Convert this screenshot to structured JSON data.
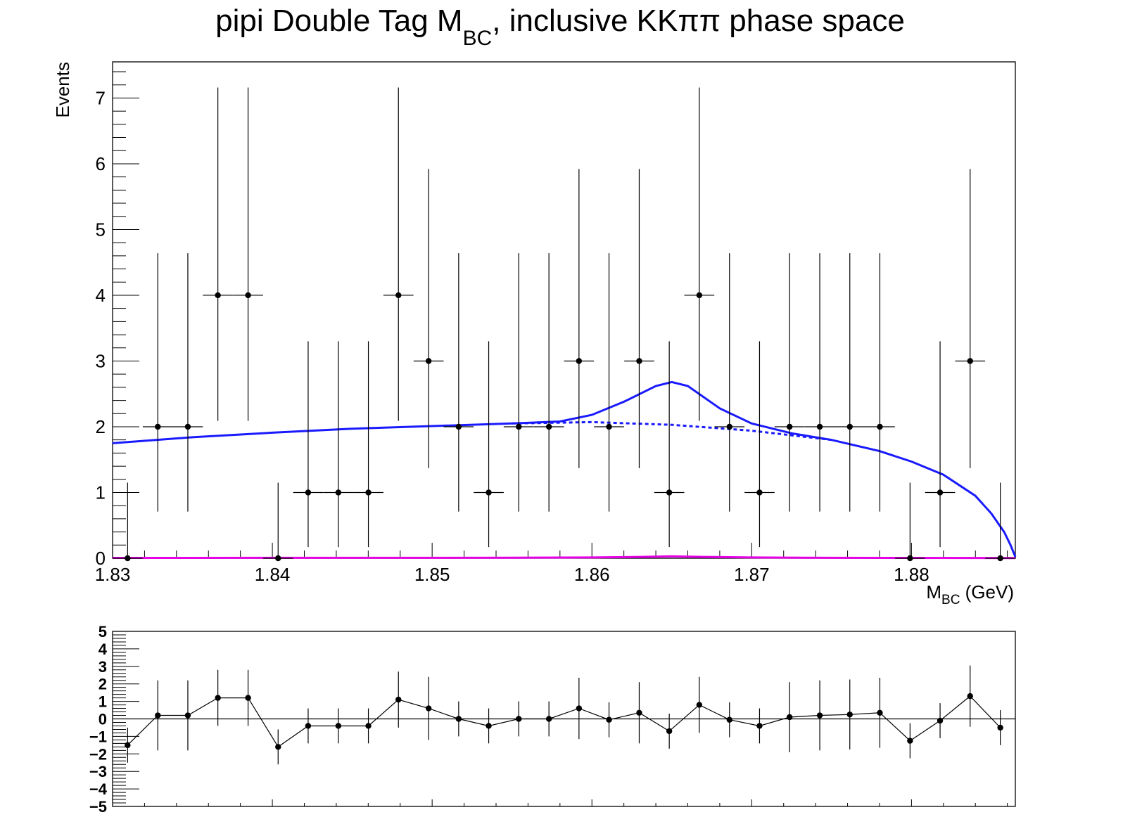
{
  "chart_data": [
    {
      "type": "scatter",
      "title": "pipi Double Tag M",
      "title_sub": "BC",
      "title_rest": ", inclusive KKππ phase space",
      "xlabel_main": "M",
      "xlabel_sub": "BC",
      "xlabel_unit": " (GeV)",
      "ylabel": "Events",
      "xlim": [
        1.83,
        1.8865
      ],
      "ylim": [
        0,
        7.55
      ],
      "x_ticks": [
        1.83,
        1.84,
        1.85,
        1.86,
        1.87,
        1.88
      ],
      "x_tick_labels": [
        "1.83",
        "1.84",
        "1.85",
        "1.86",
        "1.87",
        "1.88"
      ],
      "y_ticks": [
        0,
        1,
        2,
        3,
        4,
        5,
        6,
        7
      ],
      "y_tick_labels": [
        "0",
        "1",
        "2",
        "3",
        "4",
        "5",
        "6",
        "7"
      ],
      "bin_half_width": 0.00094,
      "data_points": {
        "x": [
          1.83094,
          1.83283,
          1.83471,
          1.83659,
          1.83848,
          1.84036,
          1.84224,
          1.84413,
          1.84601,
          1.84789,
          1.84978,
          1.85166,
          1.85354,
          1.85542,
          1.85731,
          1.85919,
          1.86107,
          1.86296,
          1.86484,
          1.86672,
          1.86861,
          1.87049,
          1.87237,
          1.87426,
          1.87614,
          1.87802,
          1.87991,
          1.88179,
          1.88367,
          1.88556
        ],
        "y": [
          0,
          2,
          2,
          4,
          4,
          0,
          1,
          1,
          1,
          4,
          3,
          2,
          1,
          2,
          2,
          3,
          2,
          3,
          1,
          4,
          2,
          1,
          2,
          2,
          2,
          2,
          0,
          1,
          3,
          0
        ],
        "err_low": [
          0,
          1.29,
          1.29,
          1.91,
          1.91,
          0,
          0.83,
          0.83,
          0.83,
          1.91,
          1.63,
          1.29,
          0.83,
          1.29,
          1.29,
          1.63,
          1.29,
          1.63,
          0.83,
          1.91,
          1.29,
          0.83,
          1.29,
          1.29,
          1.29,
          1.29,
          0,
          0.83,
          1.63,
          0
        ],
        "err_high": [
          1.15,
          2.64,
          2.64,
          3.16,
          3.16,
          1.15,
          2.3,
          2.3,
          2.3,
          3.16,
          2.92,
          2.64,
          2.3,
          2.64,
          2.64,
          2.92,
          2.64,
          2.92,
          2.3,
          3.16,
          2.64,
          2.3,
          2.64,
          2.64,
          2.64,
          2.64,
          1.15,
          2.3,
          2.92,
          1.15
        ]
      },
      "curves": [
        {
          "style": "solid",
          "color": "#1a1aff",
          "x": [
            1.83,
            1.835,
            1.84,
            1.845,
            1.85,
            1.855,
            1.858,
            1.86,
            1.862,
            1.864,
            1.865,
            1.866,
            1.868,
            1.87,
            1.8725,
            1.875,
            1.878,
            1.88,
            1.882,
            1.884,
            1.885,
            1.8858,
            1.8862,
            1.8865
          ],
          "y": [
            1.75,
            1.84,
            1.91,
            1.97,
            2.01,
            2.05,
            2.08,
            2.18,
            2.38,
            2.62,
            2.68,
            2.62,
            2.28,
            2.05,
            1.9,
            1.8,
            1.63,
            1.47,
            1.27,
            0.95,
            0.68,
            0.4,
            0.2,
            0.02
          ]
        },
        {
          "style": "dashed",
          "color": "#1a1aff",
          "x": [
            1.855,
            1.86,
            1.865,
            1.87,
            1.875
          ],
          "y": [
            2.05,
            2.07,
            2.03,
            1.94,
            1.8
          ]
        },
        {
          "style": "solid",
          "color": "#e600e6",
          "x": [
            1.83,
            1.855,
            1.86,
            1.863,
            1.865,
            1.867,
            1.87,
            1.875,
            1.8865
          ],
          "y": [
            0.005,
            0.008,
            0.012,
            0.02,
            0.03,
            0.02,
            0.012,
            0.006,
            0.003
          ]
        }
      ]
    },
    {
      "type": "line",
      "title": "",
      "ylim": [
        -5,
        5
      ],
      "y_ticks": [
        5,
        4,
        3,
        2,
        1,
        0,
        -1,
        -2,
        -3,
        -4,
        -5
      ],
      "y_tick_labels": [
        "5",
        "4",
        "3",
        "2",
        "1",
        "0",
        "−1",
        "−2",
        "−3",
        "−4",
        "−5"
      ],
      "x": [
        1.83094,
        1.83283,
        1.83471,
        1.83659,
        1.83848,
        1.84036,
        1.84224,
        1.84413,
        1.84601,
        1.84789,
        1.84978,
        1.85166,
        1.85354,
        1.85542,
        1.85731,
        1.85919,
        1.86107,
        1.86296,
        1.86484,
        1.86672,
        1.86861,
        1.87049,
        1.87237,
        1.87426,
        1.87614,
        1.87802,
        1.87991,
        1.88179,
        1.88367,
        1.88556
      ],
      "y": [
        -1.5,
        0.2,
        0.2,
        1.2,
        1.2,
        -1.6,
        -0.4,
        -0.4,
        -0.4,
        1.1,
        0.6,
        0.0,
        -0.4,
        0.0,
        0.0,
        0.6,
        -0.05,
        0.35,
        -0.7,
        0.8,
        -0.05,
        -0.4,
        0.1,
        0.2,
        0.25,
        0.35,
        -1.25,
        -0.1,
        1.3,
        -0.5
      ],
      "err": [
        1.0,
        2.0,
        2.0,
        1.6,
        1.6,
        1.0,
        1.0,
        1.0,
        1.0,
        1.6,
        1.8,
        1.0,
        1.0,
        1.0,
        1.0,
        1.75,
        1.0,
        1.75,
        1.0,
        1.6,
        1.0,
        1.0,
        2.0,
        2.0,
        2.0,
        2.0,
        1.0,
        1.0,
        1.75,
        1.0
      ]
    }
  ]
}
